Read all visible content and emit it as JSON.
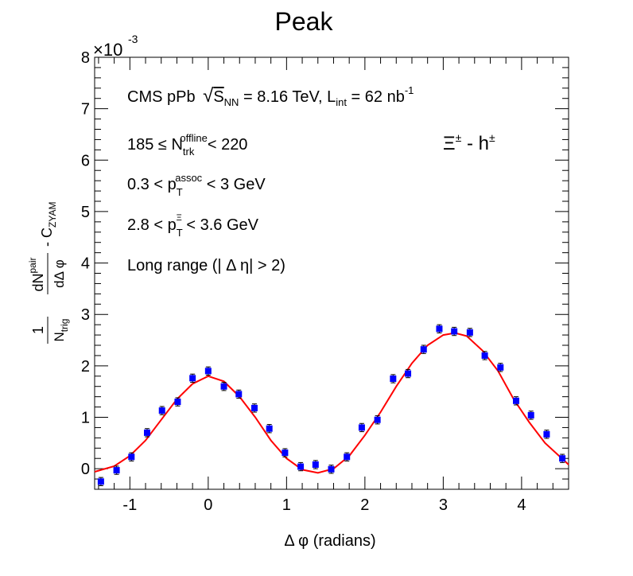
{
  "chart_data": {
    "type": "scatter",
    "title": "Peak",
    "xlabel": "Δφ (radians)",
    "ylabel": "1/N_trig dN^pair/dΔφ - C_ZYAM",
    "exponent_label": "×10",
    "exponent_power": "-3",
    "xlim": [
      -1.45,
      4.6
    ],
    "ylim": [
      -0.4,
      8.0
    ],
    "x_ticks": [
      -1,
      0,
      1,
      2,
      3,
      4
    ],
    "y_ticks": [
      0,
      1,
      2,
      3,
      4,
      5,
      6,
      7,
      8
    ],
    "grid": false,
    "colors": {
      "points": "#0000ff",
      "fit": "#ff0000",
      "errors": "#000000"
    },
    "annotations": {
      "line1": "CMS pPb √S_NN = 8.16 TeV, L_int = 62 nb^-1",
      "line2": "185 ≤ N_trk^offline < 220",
      "line3": "0.3 < p_T^assoc < 3 GeV",
      "line4": "2.8 < p_T^Ξ < 3.6 GeV",
      "line5": "Long range (|Δη| > 2)",
      "particle": "Ξ^± - h^±"
    },
    "series": [
      {
        "marker": "square",
        "x": [
          -1.37,
          -1.17,
          -0.98,
          -0.78,
          -0.59,
          -0.39,
          -0.2,
          0.0,
          0.2,
          0.39,
          0.59,
          0.78,
          0.98,
          1.18,
          1.37,
          1.57,
          1.77,
          1.96,
          2.16,
          2.36,
          2.55,
          2.75,
          2.95,
          3.14,
          3.34,
          3.53,
          3.73,
          3.93,
          4.12,
          4.32,
          4.52
        ],
        "y": [
          -0.25,
          -0.03,
          0.23,
          0.7,
          1.13,
          1.3,
          1.76,
          1.9,
          1.6,
          1.45,
          1.18,
          0.78,
          0.31,
          0.04,
          0.08,
          -0.01,
          0.23,
          0.8,
          0.95,
          1.75,
          1.85,
          2.32,
          2.72,
          2.67,
          2.65,
          2.2,
          1.97,
          1.32,
          1.04,
          0.67,
          0.2
        ],
        "err": [
          0.08,
          0.08,
          0.08,
          0.08,
          0.08,
          0.08,
          0.08,
          0.08,
          0.08,
          0.08,
          0.08,
          0.08,
          0.08,
          0.08,
          0.08,
          0.08,
          0.08,
          0.08,
          0.08,
          0.08,
          0.08,
          0.08,
          0.08,
          0.08,
          0.08,
          0.08,
          0.08,
          0.08,
          0.08,
          0.08,
          0.08
        ]
      },
      {
        "marker": "line",
        "x": [
          -1.45,
          -1.2,
          -1.0,
          -0.8,
          -0.6,
          -0.4,
          -0.2,
          0.0,
          0.2,
          0.4,
          0.6,
          0.8,
          1.0,
          1.2,
          1.4,
          1.6,
          1.8,
          2.0,
          2.2,
          2.4,
          2.6,
          2.8,
          3.0,
          3.15,
          3.3,
          3.5,
          3.7,
          3.9,
          4.1,
          4.3,
          4.6
        ],
        "y": [
          -0.06,
          0.05,
          0.25,
          0.55,
          0.95,
          1.35,
          1.65,
          1.8,
          1.7,
          1.4,
          1.0,
          0.55,
          0.2,
          -0.02,
          -0.08,
          0.0,
          0.25,
          0.65,
          1.1,
          1.6,
          2.05,
          2.4,
          2.6,
          2.64,
          2.58,
          2.3,
          1.9,
          1.35,
          0.9,
          0.5,
          0.08
        ]
      }
    ]
  }
}
